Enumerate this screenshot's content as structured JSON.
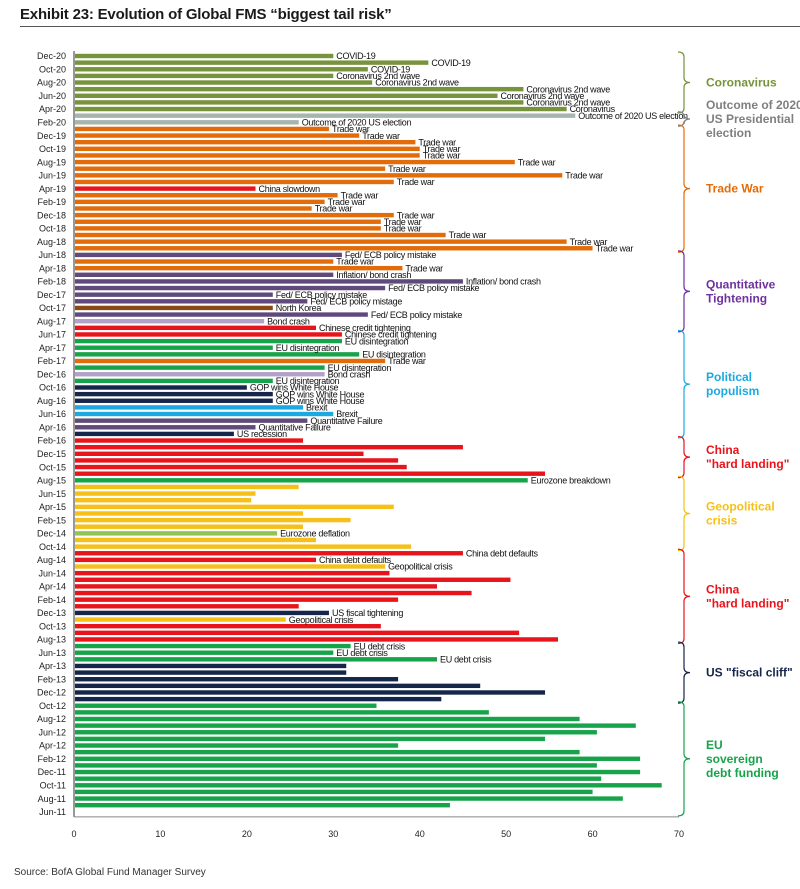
{
  "chart_data": {
    "type": "bar",
    "orientation": "horizontal",
    "title": "Exhibit 23: Evolution of Global FMS “biggest tail risk”",
    "xlabel": "",
    "ylabel": "",
    "xlim": [
      0,
      70
    ],
    "xticks": [
      0,
      10,
      20,
      30,
      40,
      50,
      60,
      70
    ],
    "grid": false,
    "source": "Source: BofA Global Fund Manager Survey",
    "colors": {
      "covid": "#77933c",
      "election": "#a6b5ad",
      "trade": "#e36c0a",
      "china": "#e8141b",
      "qt": "#604a7b",
      "northkorea": "#8b4a12",
      "bondcrash": "#b3a2c7",
      "eu": "#17a34a",
      "gop": "#16264a",
      "brexit": "#1ba9e1",
      "geo": "#f5c01a",
      "eudefl": "#92c353"
    },
    "bars": [
      {
        "month": "Dec-20",
        "value": 30,
        "color": "covid",
        "label": "COVID-19"
      },
      {
        "month": "Nov-20",
        "value": 41,
        "color": "covid",
        "label": "COVID-19"
      },
      {
        "month": "Oct-20",
        "value": 34,
        "color": "covid",
        "label": "COVID-19"
      },
      {
        "month": "Sep-20",
        "value": 30,
        "color": "covid",
        "label": "Coronavirus 2nd wave"
      },
      {
        "month": "Aug-20",
        "value": 34.5,
        "color": "covid",
        "label": "Coronavirus 2nd wave"
      },
      {
        "month": "Jul-20",
        "value": 52,
        "color": "covid",
        "label": "Coronavirus 2nd wave"
      },
      {
        "month": "Jun-20",
        "value": 49,
        "color": "covid",
        "label": "Coronavirus 2nd wave"
      },
      {
        "month": "May-20",
        "value": 52,
        "color": "covid",
        "label": "Coronavirus 2nd wave"
      },
      {
        "month": "Apr-20",
        "value": 57,
        "color": "covid",
        "label": "Coronavirus"
      },
      {
        "month": "Mar-20",
        "value": 58,
        "color": "election",
        "label": "Outcome of 2020 US election"
      },
      {
        "month": "Feb-20",
        "value": 26,
        "color": "election",
        "label": "Outcome of 2020 US election"
      },
      {
        "month": "Jan-20",
        "value": 29.5,
        "color": "trade",
        "label": "Trade war"
      },
      {
        "month": "Dec-19",
        "value": 33,
        "color": "trade",
        "label": "Trade war"
      },
      {
        "month": "Nov-19",
        "value": 39.5,
        "color": "trade",
        "label": "Trade war"
      },
      {
        "month": "Oct-19",
        "value": 40,
        "color": "trade",
        "label": "Trade war"
      },
      {
        "month": "Sep-19",
        "value": 40,
        "color": "trade",
        "label": "Trade war"
      },
      {
        "month": "Aug-19",
        "value": 51,
        "color": "trade",
        "label": "Trade war"
      },
      {
        "month": "Jul-19",
        "value": 36,
        "color": "trade",
        "label": "Trade war"
      },
      {
        "month": "Jun-19",
        "value": 56.5,
        "color": "trade",
        "label": "Trade war"
      },
      {
        "month": "May-19",
        "value": 37,
        "color": "trade",
        "label": "Trade war"
      },
      {
        "month": "Apr-19",
        "value": 21,
        "color": "china",
        "label": "China slowdown"
      },
      {
        "month": "Mar-19",
        "value": 30.5,
        "color": "trade",
        "label": "Trade war"
      },
      {
        "month": "Feb-19",
        "value": 29,
        "color": "trade",
        "label": "Trade war"
      },
      {
        "month": "Jan-19",
        "value": 27.5,
        "color": "trade",
        "label": "Trade war"
      },
      {
        "month": "Dec-18",
        "value": 37,
        "color": "trade",
        "label": "Trade war"
      },
      {
        "month": "Nov-18",
        "value": 35.5,
        "color": "trade",
        "label": "Trade war"
      },
      {
        "month": "Oct-18",
        "value": 35.5,
        "color": "trade",
        "label": "Trade war"
      },
      {
        "month": "Sep-18",
        "value": 43,
        "color": "trade",
        "label": "Trade war"
      },
      {
        "month": "Aug-18",
        "value": 57,
        "color": "trade",
        "label": "Trade war"
      },
      {
        "month": "Jul-18",
        "value": 60,
        "color": "trade",
        "label": "Trade war"
      },
      {
        "month": "Jun-18",
        "value": 31,
        "color": "qt",
        "label": "Fed/ ECB policy mistake"
      },
      {
        "month": "May-18",
        "value": 30,
        "color": "trade",
        "label": "Trade war"
      },
      {
        "month": "Apr-18",
        "value": 38,
        "color": "trade",
        "label": "Trade war"
      },
      {
        "month": "Mar-18",
        "value": 30,
        "color": "qt",
        "label": "Inflation/ bond crash"
      },
      {
        "month": "Feb-18",
        "value": 45,
        "color": "qt",
        "label": "Inflation/ bond crash"
      },
      {
        "month": "Jan-18",
        "value": 36,
        "color": "qt",
        "label": "Fed/ ECB policy mistake"
      },
      {
        "month": "Dec-17",
        "value": 23,
        "color": "qt",
        "label": "Fed/ ECB policy mistake"
      },
      {
        "month": "Nov-17",
        "value": 27,
        "color": "qt",
        "label": "Fed/ ECB policy mistage"
      },
      {
        "month": "Oct-17",
        "value": 23,
        "color": "northkorea",
        "label": "North Korea"
      },
      {
        "month": "Sep-17",
        "value": 34,
        "color": "qt",
        "label": "Fed/ ECB policy mistake"
      },
      {
        "month": "Aug-17",
        "value": 22,
        "color": "bondcrash",
        "label": "Bond crash"
      },
      {
        "month": "Jul-17",
        "value": 28,
        "color": "china",
        "label": "Chinese credit tightening"
      },
      {
        "month": "Jun-17",
        "value": 31,
        "color": "china",
        "label": "Chinese credit tightening"
      },
      {
        "month": "May-17",
        "value": 31,
        "color": "eu",
        "label": "EU disintegration"
      },
      {
        "month": "Apr-17",
        "value": 23,
        "color": "eu",
        "label": "EU disintegration"
      },
      {
        "month": "Mar-17",
        "value": 33,
        "color": "eu",
        "label": "EU disintegration"
      },
      {
        "month": "Feb-17",
        "value": 36,
        "color": "trade",
        "label": "Trade war"
      },
      {
        "month": "Jan-17",
        "value": 29,
        "color": "eu",
        "label": "EU disintegration"
      },
      {
        "month": "Dec-16",
        "value": 29,
        "color": "bondcrash",
        "label": "Bond crash"
      },
      {
        "month": "Nov-16",
        "value": 23,
        "color": "eu",
        "label": "EU disintegration"
      },
      {
        "month": "Oct-16",
        "value": 20,
        "color": "gop",
        "label": "GOP wins White House"
      },
      {
        "month": "Sep-16",
        "value": 23,
        "color": "gop",
        "label": "GOP wins White House"
      },
      {
        "month": "Aug-16",
        "value": 23,
        "color": "gop",
        "label": "GOP wins White House"
      },
      {
        "month": "Jul-16",
        "value": 26.5,
        "color": "brexit",
        "label": "Brexit"
      },
      {
        "month": "Jun-16",
        "value": 30,
        "color": "brexit",
        "label": "Brexit"
      },
      {
        "month": "May-16",
        "value": 27,
        "color": "qt",
        "label": "Quantitative Failure"
      },
      {
        "month": "Apr-16",
        "value": 21,
        "color": "qt",
        "label": "Quantitative Failure"
      },
      {
        "month": "Mar-16",
        "value": 18.5,
        "color": "gop",
        "label": "US recession"
      },
      {
        "month": "Feb-16",
        "value": 26.5,
        "color": "china",
        "label": ""
      },
      {
        "month": "Jan-16",
        "value": 45,
        "color": "china",
        "label": ""
      },
      {
        "month": "Dec-15",
        "value": 33.5,
        "color": "china",
        "label": ""
      },
      {
        "month": "Nov-15",
        "value": 37.5,
        "color": "china",
        "label": ""
      },
      {
        "month": "Oct-15",
        "value": 38.5,
        "color": "china",
        "label": ""
      },
      {
        "month": "Sep-15",
        "value": 54.5,
        "color": "china",
        "label": ""
      },
      {
        "month": "Aug-15",
        "value": 52.5,
        "color": "eu",
        "label": "Eurozone breakdown"
      },
      {
        "month": "Jul-15",
        "value": 26,
        "color": "geo",
        "label": ""
      },
      {
        "month": "Jun-15",
        "value": 21,
        "color": "geo",
        "label": ""
      },
      {
        "month": "May-15",
        "value": 20.5,
        "color": "geo",
        "label": ""
      },
      {
        "month": "Apr-15",
        "value": 37,
        "color": "geo",
        "label": ""
      },
      {
        "month": "Mar-15",
        "value": 26.5,
        "color": "geo",
        "label": ""
      },
      {
        "month": "Feb-15",
        "value": 32,
        "color": "geo",
        "label": ""
      },
      {
        "month": "Jan-15",
        "value": 26.5,
        "color": "geo",
        "label": ""
      },
      {
        "month": "Dec-14",
        "value": 23.5,
        "color": "eudefl",
        "label": "Eurozone deflation"
      },
      {
        "month": "Nov-14",
        "value": 28,
        "color": "geo",
        "label": ""
      },
      {
        "month": "Oct-14",
        "value": 39,
        "color": "geo",
        "label": ""
      },
      {
        "month": "Sep-14",
        "value": 45,
        "color": "china",
        "label": "China debt defaults"
      },
      {
        "month": "Aug-14",
        "value": 28,
        "color": "china",
        "label": "China debt defaults"
      },
      {
        "month": "Jul-14",
        "value": 36,
        "color": "geo",
        "label": "Geopolitical crisis"
      },
      {
        "month": "Jun-14",
        "value": 36.5,
        "color": "china",
        "label": ""
      },
      {
        "month": "May-14",
        "value": 50.5,
        "color": "china",
        "label": ""
      },
      {
        "month": "Apr-14",
        "value": 42,
        "color": "china",
        "label": ""
      },
      {
        "month": "Mar-14",
        "value": 46,
        "color": "china",
        "label": ""
      },
      {
        "month": "Feb-14",
        "value": 37.5,
        "color": "china",
        "label": ""
      },
      {
        "month": "Jan-14",
        "value": 26,
        "color": "china",
        "label": ""
      },
      {
        "month": "Dec-13",
        "value": 29.5,
        "color": "gop",
        "label": "US fiscal tightening"
      },
      {
        "month": "Nov-13",
        "value": 24.5,
        "color": "geo",
        "label": "Geopolitical crisis"
      },
      {
        "month": "Oct-13",
        "value": 35.5,
        "color": "china",
        "label": ""
      },
      {
        "month": "Sep-13",
        "value": 51.5,
        "color": "china",
        "label": ""
      },
      {
        "month": "Aug-13",
        "value": 56,
        "color": "china",
        "label": ""
      },
      {
        "month": "Jul-13",
        "value": 32,
        "color": "eu",
        "label": "EU debt crisis"
      },
      {
        "month": "Jun-13",
        "value": 30,
        "color": "eu",
        "label": "EU debt crisis"
      },
      {
        "month": "May-13",
        "value": 42,
        "color": "eu",
        "label": "EU debt crisis"
      },
      {
        "month": "Apr-13",
        "value": 31.5,
        "color": "gop",
        "label": ""
      },
      {
        "month": "Mar-13",
        "value": 31.5,
        "color": "gop",
        "label": ""
      },
      {
        "month": "Feb-13",
        "value": 37.5,
        "color": "gop",
        "label": ""
      },
      {
        "month": "Jan-13",
        "value": 47,
        "color": "gop",
        "label": ""
      },
      {
        "month": "Dec-12",
        "value": 54.5,
        "color": "gop",
        "label": ""
      },
      {
        "month": "Nov-12",
        "value": 42.5,
        "color": "gop",
        "label": ""
      },
      {
        "month": "Oct-12",
        "value": 35,
        "color": "eu",
        "label": ""
      },
      {
        "month": "Sep-12",
        "value": 48,
        "color": "eu",
        "label": ""
      },
      {
        "month": "Aug-12",
        "value": 58.5,
        "color": "eu",
        "label": ""
      },
      {
        "month": "Jul-12",
        "value": 65,
        "color": "eu",
        "label": ""
      },
      {
        "month": "Jun-12",
        "value": 60.5,
        "color": "eu",
        "label": ""
      },
      {
        "month": "May-12",
        "value": 54.5,
        "color": "eu",
        "label": ""
      },
      {
        "month": "Apr-12",
        "value": 37.5,
        "color": "eu",
        "label": ""
      },
      {
        "month": "Mar-12",
        "value": 58.5,
        "color": "eu",
        "label": ""
      },
      {
        "month": "Feb-12",
        "value": 65.5,
        "color": "eu",
        "label": ""
      },
      {
        "month": "Jan-12",
        "value": 60.5,
        "color": "eu",
        "label": ""
      },
      {
        "month": "Dec-11",
        "value": 65.5,
        "color": "eu",
        "label": ""
      },
      {
        "month": "Nov-11",
        "value": 61,
        "color": "eu",
        "label": ""
      },
      {
        "month": "Oct-11",
        "value": 68,
        "color": "eu",
        "label": ""
      },
      {
        "month": "Sep-11",
        "value": 60,
        "color": "eu",
        "label": ""
      },
      {
        "month": "Aug-11",
        "value": 63.5,
        "color": "eu",
        "label": ""
      },
      {
        "month": "Jul-11",
        "value": 43.5,
        "color": "eu",
        "label": ""
      },
      {
        "month": "Jun-11",
        "value": 0,
        "color": "eu",
        "label": ""
      }
    ],
    "ytick_labels": [
      "Dec-20",
      "Oct-20",
      "Aug-20",
      "Jun-20",
      "Apr-20",
      "Feb-20",
      "Dec-19",
      "Oct-19",
      "Aug-19",
      "Jun-19",
      "Apr-19",
      "Feb-19",
      "Dec-18",
      "Oct-18",
      "Aug-18",
      "Jun-18",
      "Apr-18",
      "Feb-18",
      "Dec-17",
      "Oct-17",
      "Aug-17",
      "Jun-17",
      "Apr-17",
      "Feb-17",
      "Dec-16",
      "Oct-16",
      "Aug-16",
      "Jun-16",
      "Apr-16",
      "Feb-16",
      "Dec-15",
      "Oct-15",
      "Aug-15",
      "Jun-15",
      "Apr-15",
      "Feb-15",
      "Dec-14",
      "Oct-14",
      "Aug-14",
      "Jun-14",
      "Apr-14",
      "Feb-14",
      "Dec-13",
      "Oct-13",
      "Aug-13",
      "Jun-13",
      "Apr-13",
      "Feb-13",
      "Dec-12",
      "Oct-12",
      "Aug-12",
      "Jun-12",
      "Apr-12",
      "Feb-12",
      "Dec-11",
      "Oct-11",
      "Aug-11",
      "Jun-11"
    ],
    "groups": [
      {
        "label": [
          "Coronavirus"
        ],
        "from": "Dec-20",
        "to": "Apr-20",
        "color": "#77933c"
      },
      {
        "label": [
          "Outcome of 2020",
          "US Presidential",
          "election"
        ],
        "from": "Mar-20",
        "to": "Feb-20",
        "color": "#7f7f7f"
      },
      {
        "label": [
          "Trade War"
        ],
        "from": "Jan-20",
        "to": "Jul-18",
        "color": "#e36c0a"
      },
      {
        "label": [
          "Quantitative",
          "Tightening"
        ],
        "from": "Jun-18",
        "to": "Jul-17",
        "color": "#7030a0"
      },
      {
        "label": [
          "Political",
          "populism"
        ],
        "from": "Jun-17",
        "to": "Mar-16",
        "color": "#1ba9e1"
      },
      {
        "label": [
          "China",
          "\"hard landing\""
        ],
        "from": "Feb-16",
        "to": "Sep-15",
        "color": "#e8141b"
      },
      {
        "label": [
          "Geopolitical",
          "crisis"
        ],
        "from": "Aug-15",
        "to": "Oct-14",
        "color": "#f5c01a"
      },
      {
        "label": [
          "China",
          "\"hard landing\""
        ],
        "from": "Sep-14",
        "to": "Aug-13",
        "color": "#e8141b"
      },
      {
        "label": [
          "US \"fiscal cliff\""
        ],
        "from": "Jul-13",
        "to": "Nov-12",
        "color": "#16264a"
      },
      {
        "label": [
          "EU",
          "sovereign",
          "debt funding"
        ],
        "from": "Oct-12",
        "to": "Jun-11",
        "color": "#17a34a"
      }
    ]
  }
}
